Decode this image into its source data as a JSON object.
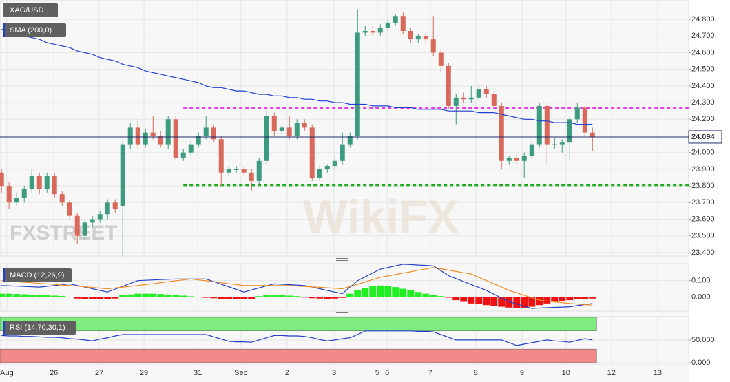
{
  "chart_data": [
    {
      "type": "candlestick",
      "title": "XAG/USD",
      "watermarks": [
        "FXSTREET",
        "WikiFX"
      ],
      "x": [
        0,
        1,
        2,
        3,
        4,
        5,
        6,
        7,
        8,
        9,
        10,
        11,
        12,
        13,
        14,
        15,
        16,
        17,
        18,
        19,
        20,
        21,
        22,
        23,
        24,
        25,
        26,
        27,
        28,
        29,
        30,
        31,
        32,
        33,
        34,
        35,
        36,
        37,
        38,
        39,
        40,
        41,
        42,
        43,
        44,
        45,
        46,
        47,
        48,
        49,
        50,
        51,
        52,
        53,
        54,
        55,
        56,
        57,
        58,
        59,
        60,
        61,
        62,
        63,
        64,
        65,
        66,
        67,
        68,
        69,
        70,
        71,
        72,
        73,
        74,
        75,
        76,
        77,
        78
      ],
      "open": [
        23.88,
        23.8,
        23.7,
        23.73,
        23.78,
        23.86,
        23.78,
        23.86,
        23.75,
        23.7,
        23.62,
        23.5,
        23.58,
        23.6,
        23.63,
        23.7,
        23.68,
        24.05,
        24.15,
        24.05,
        24.12,
        24.1,
        24.05,
        24.2,
        23.97,
        24.0,
        24.05,
        24.1,
        24.15,
        24.08,
        23.88,
        23.9,
        23.9,
        23.88,
        23.83,
        23.95,
        24.22,
        24.13,
        24.15,
        24.1,
        24.18,
        24.15,
        23.85,
        23.9,
        23.92,
        23.95,
        24.05,
        24.1,
        24.72,
        24.73,
        24.72,
        24.75,
        24.78,
        24.82,
        24.73,
        24.68,
        24.7,
        24.68,
        24.6,
        24.52,
        24.28,
        24.33,
        24.32,
        24.33,
        24.38,
        24.35,
        24.28,
        23.95,
        23.97,
        23.95,
        23.98,
        24.05,
        24.28,
        24.05,
        24.05,
        24.06,
        24.2,
        24.27,
        24.12
      ],
      "close": [
        23.8,
        23.7,
        23.73,
        23.78,
        23.86,
        23.78,
        23.86,
        23.75,
        23.7,
        23.62,
        23.5,
        23.58,
        23.6,
        23.63,
        23.7,
        23.66,
        24.05,
        24.15,
        24.05,
        24.12,
        24.1,
        24.05,
        24.2,
        23.97,
        24.0,
        24.05,
        24.1,
        24.15,
        24.08,
        23.88,
        23.9,
        23.9,
        23.88,
        23.83,
        23.95,
        24.22,
        24.13,
        24.15,
        24.1,
        24.18,
        24.15,
        23.85,
        23.9,
        23.92,
        23.95,
        24.05,
        24.1,
        24.72,
        24.73,
        24.72,
        24.75,
        24.78,
        24.82,
        24.73,
        24.68,
        24.7,
        24.68,
        24.6,
        24.52,
        24.28,
        24.33,
        24.32,
        24.33,
        24.38,
        24.35,
        24.28,
        23.95,
        23.97,
        23.95,
        23.98,
        24.05,
        24.28,
        24.05,
        24.05,
        24.06,
        24.2,
        24.27,
        24.12,
        24.094
      ],
      "high": [
        23.9,
        23.82,
        23.76,
        23.8,
        23.9,
        23.88,
        23.88,
        23.88,
        23.77,
        23.72,
        23.64,
        23.6,
        23.62,
        23.65,
        23.72,
        23.72,
        24.07,
        24.18,
        24.2,
        24.14,
        24.22,
        24.13,
        24.22,
        24.22,
        24.02,
        24.07,
        24.12,
        24.22,
        24.17,
        24.1,
        23.92,
        23.92,
        23.92,
        23.9,
        23.97,
        24.26,
        24.24,
        24.17,
        24.22,
        24.2,
        24.2,
        24.17,
        23.92,
        23.93,
        23.97,
        24.12,
        24.12,
        24.86,
        24.76,
        24.76,
        24.77,
        24.8,
        24.83,
        24.84,
        24.75,
        24.71,
        24.72,
        24.82,
        24.62,
        24.54,
        24.35,
        24.36,
        24.4,
        24.4,
        24.4,
        24.37,
        24.3,
        23.98,
        23.99,
        24.0,
        24.07,
        24.3,
        24.3,
        24.09,
        24.08,
        24.22,
        24.3,
        24.28,
        24.15
      ],
      "low": [
        23.76,
        23.66,
        23.68,
        23.7,
        23.76,
        23.75,
        23.76,
        23.73,
        23.68,
        23.6,
        23.45,
        23.48,
        23.55,
        23.58,
        23.6,
        23.64,
        23.37,
        24.02,
        24.02,
        24.03,
        24.08,
        24.03,
        24.02,
        23.95,
        23.95,
        23.98,
        24.03,
        24.08,
        24.06,
        23.8,
        23.86,
        23.88,
        23.86,
        23.77,
        23.81,
        23.93,
        24.1,
        24.11,
        24.08,
        24.08,
        24.13,
        23.83,
        23.83,
        23.88,
        23.9,
        23.93,
        24.03,
        24.08,
        24.7,
        24.7,
        24.7,
        24.73,
        24.76,
        24.71,
        24.66,
        24.66,
        24.66,
        24.58,
        24.48,
        24.26,
        24.17,
        24.3,
        24.3,
        24.31,
        24.33,
        24.26,
        23.9,
        23.93,
        23.93,
        23.85,
        23.96,
        24.03,
        23.93,
        24.02,
        24.0,
        23.96,
        24.18,
        24.1,
        24.01
      ],
      "up_color": "#3d9b80",
      "down_color": "#d9695a",
      "sma": {
        "label": "SMA (200,0)",
        "color": "#1f3fd0",
        "values": [
          24.74,
          24.73,
          24.71,
          24.7,
          24.69,
          24.68,
          24.66,
          24.65,
          24.64,
          24.63,
          24.61,
          24.6,
          24.59,
          24.57,
          24.56,
          24.55,
          24.53,
          24.52,
          24.51,
          24.49,
          24.48,
          24.47,
          24.46,
          24.45,
          24.44,
          24.43,
          24.42,
          24.4,
          24.39,
          24.39,
          24.38,
          24.37,
          24.37,
          24.36,
          24.35,
          24.35,
          24.34,
          24.34,
          24.33,
          24.33,
          24.32,
          24.32,
          24.31,
          24.31,
          24.3,
          24.3,
          24.29,
          24.29,
          24.29,
          24.28,
          24.28,
          24.28,
          24.27,
          24.27,
          24.27,
          24.26,
          24.26,
          24.26,
          24.26,
          24.25,
          24.25,
          24.25,
          24.25,
          24.24,
          24.24,
          24.24,
          24.23,
          24.22,
          24.21,
          24.2,
          24.2,
          24.19,
          24.19,
          24.18,
          24.18,
          24.18,
          24.17,
          24.17,
          24.17
        ]
      },
      "levels": [
        {
          "value": 24.267,
          "color": "#e83be8"
        },
        {
          "value": 23.805,
          "color": "#1eaa1e"
        }
      ],
      "last_price": 24.094,
      "last_color": "#1c2b6b",
      "xlim": [
        -0.2,
        90.7
      ],
      "xticks": [
        {
          "value": 0.7,
          "label": "Aug"
        },
        {
          "value": 6.9,
          "label": "26"
        },
        {
          "value": 12.9,
          "label": "27"
        },
        {
          "value": 18.8,
          "label": "29"
        },
        {
          "value": 25.9,
          "label": "31"
        },
        {
          "value": 31.6,
          "label": "Sep"
        },
        {
          "value": 37.7,
          "label": "2"
        },
        {
          "value": 43.9,
          "label": "3"
        },
        {
          "value": 49.6,
          "label": "5"
        },
        {
          "value": 50.9,
          "label": "6"
        },
        {
          "value": 56.6,
          "label": "7"
        },
        {
          "value": 62.6,
          "label": "8"
        },
        {
          "value": 68.7,
          "label": "9"
        },
        {
          "value": 74.5,
          "label": "10"
        },
        {
          "value": 80.5,
          "label": "12"
        },
        {
          "value": 86.6,
          "label": "13"
        }
      ],
      "ylim": [
        23.379,
        24.916
      ],
      "yticks": [
        {
          "value": 23.4,
          "label": "23.400"
        },
        {
          "value": 23.5,
          "label": "23.500"
        },
        {
          "value": 23.6,
          "label": "23.600"
        },
        {
          "value": 23.7,
          "label": "23.700"
        },
        {
          "value": 23.8,
          "label": "23.800"
        },
        {
          "value": 23.9,
          "label": "23.900"
        },
        {
          "value": 24.0,
          "label": "24.000"
        },
        {
          "value": 24.1,
          "label": "24.100"
        },
        {
          "value": 24.2,
          "label": "24.200"
        },
        {
          "value": 24.3,
          "label": "24.300"
        },
        {
          "value": 24.4,
          "label": "24.400"
        },
        {
          "value": 24.5,
          "label": "24.500"
        },
        {
          "value": 24.6,
          "label": "24.600"
        },
        {
          "value": 24.7,
          "label": "24.700"
        },
        {
          "value": 24.8,
          "label": "24.800"
        }
      ],
      "grid": true
    },
    {
      "type": "macd",
      "title": "MACD (12,26,9)",
      "macd": {
        "color": "#2340c8",
        "values": [
          0.07,
          0.068,
          0.066,
          0.064,
          0.062,
          0.06,
          0.065,
          0.07,
          0.075,
          0.08,
          0.07,
          0.06,
          0.05,
          0.04,
          0.03,
          0.048,
          0.065,
          0.083,
          0.1,
          0.102,
          0.104,
          0.106,
          0.108,
          0.11,
          0.11,
          0.11,
          0.11,
          0.11,
          0.094,
          0.078,
          0.062,
          0.046,
          0.03,
          0.043,
          0.055,
          0.068,
          0.08,
          0.078,
          0.075,
          0.073,
          0.07,
          0.06,
          0.05,
          0.04,
          0.03,
          0.02,
          0.06,
          0.1,
          0.123,
          0.147,
          0.17,
          0.18,
          0.19,
          0.2,
          0.198,
          0.195,
          0.193,
          0.19,
          0.16,
          0.13,
          0.112,
          0.094,
          0.076,
          0.058,
          0.04,
          0.017,
          -0.007,
          -0.03,
          -0.043,
          -0.057,
          -0.07,
          -0.068,
          -0.066,
          -0.064,
          -0.062,
          -0.06,
          -0.053,
          -0.047,
          -0.04
        ]
      },
      "signal": {
        "color": "#f08a24",
        "values": [
          0.1,
          0.097,
          0.093,
          0.09,
          0.087,
          0.083,
          0.08,
          0.077,
          0.073,
          0.07,
          0.066,
          0.062,
          0.058,
          0.054,
          0.05,
          0.055,
          0.06,
          0.065,
          0.07,
          0.076,
          0.081,
          0.087,
          0.093,
          0.099,
          0.104,
          0.11,
          0.104,
          0.099,
          0.093,
          0.087,
          0.081,
          0.076,
          0.07,
          0.07,
          0.07,
          0.07,
          0.07,
          0.07,
          0.07,
          0.067,
          0.064,
          0.061,
          0.059,
          0.056,
          0.053,
          0.05,
          0.064,
          0.078,
          0.092,
          0.106,
          0.12,
          0.129,
          0.137,
          0.146,
          0.154,
          0.163,
          0.171,
          0.18,
          0.172,
          0.164,
          0.156,
          0.148,
          0.14,
          0.12,
          0.1,
          0.08,
          0.06,
          0.04,
          0.025,
          0.01,
          -0.005,
          -0.02,
          -0.025,
          -0.03,
          -0.035,
          -0.04,
          -0.043,
          -0.047,
          -0.05
        ]
      },
      "histogram": {
        "up_color": "#22ee22",
        "down_color": "#ee1111",
        "values": [
          0.02,
          0.02,
          0.018,
          0.016,
          0.014,
          0.012,
          0.01,
          0.008,
          0.006,
          0.0,
          -0.01,
          -0.012,
          -0.012,
          -0.012,
          -0.012,
          -0.01,
          0.01,
          0.015,
          0.02,
          0.02,
          0.02,
          0.018,
          0.015,
          0.012,
          0.008,
          0.004,
          0.0,
          -0.005,
          -0.008,
          -0.012,
          -0.015,
          -0.015,
          -0.015,
          -0.012,
          0.005,
          0.01,
          0.012,
          0.01,
          0.008,
          0.005,
          -0.004,
          -0.008,
          -0.01,
          -0.012,
          -0.01,
          -0.006,
          0.02,
          0.04,
          0.055,
          0.065,
          0.07,
          0.068,
          0.06,
          0.05,
          0.04,
          0.03,
          0.02,
          0.01,
          0.005,
          -0.005,
          -0.02,
          -0.03,
          -0.04,
          -0.045,
          -0.05,
          -0.055,
          -0.06,
          -0.065,
          -0.07,
          -0.068,
          -0.06,
          -0.05,
          -0.04,
          -0.03,
          -0.025,
          -0.02,
          -0.015,
          -0.012,
          -0.01
        ]
      },
      "ylim": [
        -0.087,
        0.204
      ],
      "yticks": [
        {
          "value": 0.1,
          "label": "0.100"
        },
        {
          "value": 0,
          "label": "0.000"
        }
      ],
      "grid": true
    },
    {
      "type": "rsi",
      "title": "RSI (14,70,30,1)",
      "color": "#2340c8",
      "values": [
        60,
        59,
        59,
        58,
        58,
        57,
        56,
        56,
        55,
        53,
        52,
        50,
        48,
        52,
        55,
        59,
        62,
        62,
        62,
        62,
        62,
        62,
        62,
        62,
        62,
        62,
        62,
        62,
        57,
        52,
        47,
        46,
        46,
        45,
        50,
        55,
        60,
        60,
        59,
        59,
        58,
        55,
        51,
        48,
        50,
        53,
        55,
        62,
        70,
        70,
        70,
        70,
        70,
        70,
        70,
        69,
        69,
        68,
        62,
        56,
        50,
        50,
        50,
        50,
        50,
        50,
        50,
        44,
        38,
        41,
        44,
        47,
        50,
        48,
        47,
        45,
        49,
        53,
        50
      ],
      "bands": [
        {
          "from": 70,
          "to": 100,
          "color": "#7fec7f"
        },
        {
          "from": 0,
          "to": 30,
          "color": "#f28a8a"
        }
      ],
      "ylim": [
        -4.7,
        101.5
      ],
      "yticks": [
        {
          "value": 50,
          "label": "50.000"
        },
        {
          "value": 0,
          "label": "0.000"
        }
      ],
      "grid": true
    }
  ]
}
